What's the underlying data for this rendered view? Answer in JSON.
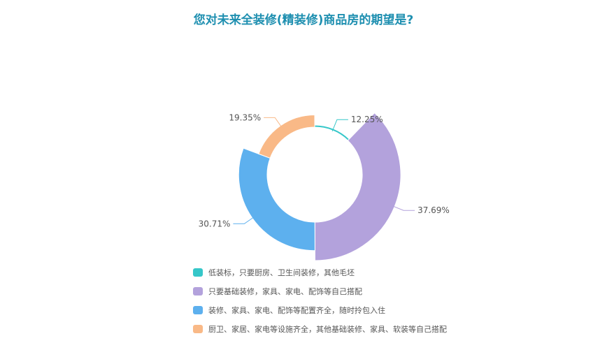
{
  "chart_data": {
    "type": "pie",
    "title": "您对未来全装修(精装修)商品房的期望是?",
    "categories": [
      "低装标，只要厨房、卫生间装修，其他毛坯",
      "只要基础装修，家具、家电、配饰等自己搭配",
      "装修、家具、家电、配饰等配置齐全，随时拎包入住",
      "厨卫、家居、家电等设施齐全，其他基础装修、家具、软装等自己搭配"
    ],
    "values": [
      12.25,
      37.69,
      30.71,
      19.35
    ],
    "value_labels": [
      "12.25%",
      "37.69%",
      "30.71%",
      "19.35%"
    ],
    "colors": [
      "#36c7c9",
      "#b3a2dc",
      "#5db0ee",
      "#f9b987"
    ],
    "style": "rose-donut",
    "legend_position": "bottom-left"
  }
}
